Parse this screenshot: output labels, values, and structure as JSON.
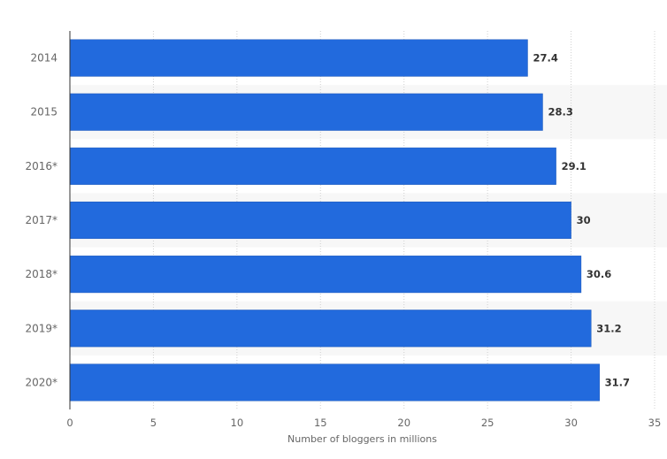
{
  "chart_data": {
    "type": "bar",
    "orientation": "horizontal",
    "categories": [
      "2014",
      "2015",
      "2016*",
      "2017*",
      "2018*",
      "2019*",
      "2020*"
    ],
    "values": [
      27.4,
      28.3,
      29.1,
      30,
      30.6,
      31.2,
      31.7
    ],
    "value_labels": [
      "27.4",
      "28.3",
      "29.1",
      "30",
      "30.6",
      "31.2",
      "31.7"
    ],
    "xlabel": "Number of bloggers in millions",
    "ylabel": "",
    "xlim": [
      0,
      35
    ],
    "xticks": [
      0,
      5,
      10,
      15,
      20,
      25,
      30,
      35
    ],
    "xtick_labels": [
      "0",
      "5",
      "10",
      "15",
      "20",
      "25",
      "30",
      "35"
    ],
    "grid": true,
    "bar_color": "#226add",
    "band_color": "#f7f7f7"
  }
}
